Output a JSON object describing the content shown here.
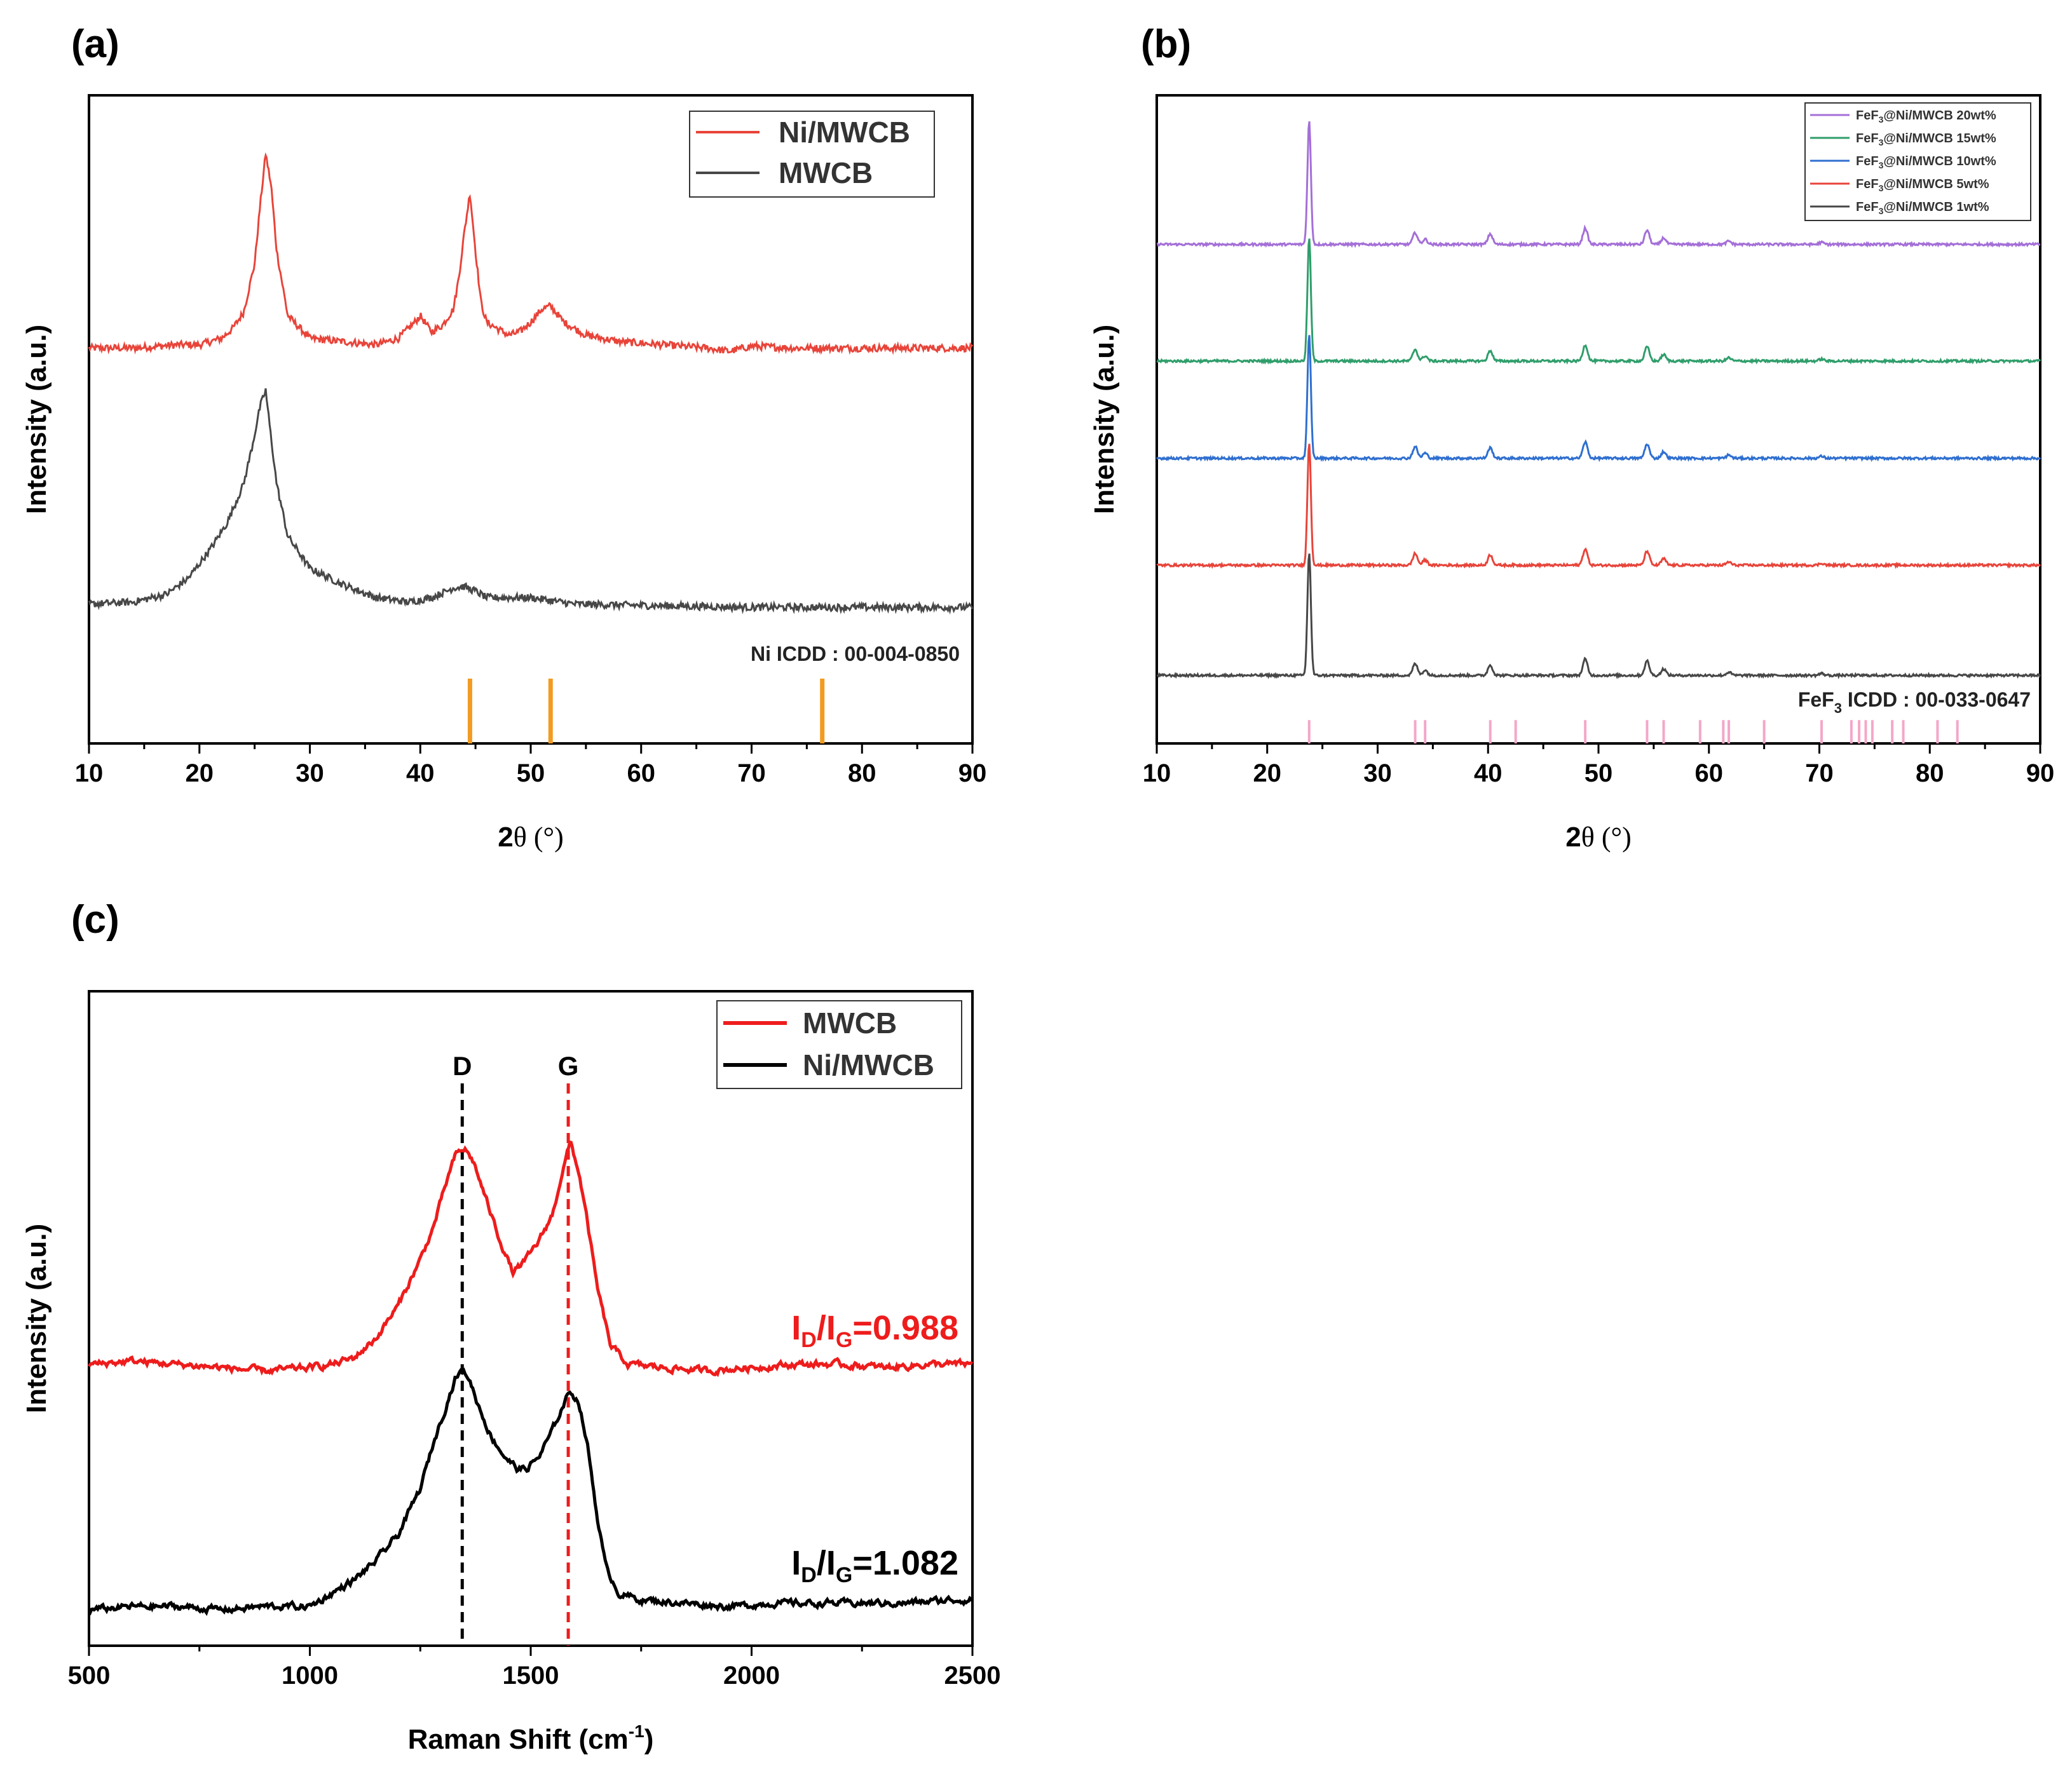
{
  "chart_data": [
    {
      "id": "a",
      "type": "line",
      "panel_label": "(a)",
      "xlabel": "2θ (°)",
      "xlabel_main": "2",
      "xlabel_sym": "θ (°)",
      "ylabel": "Intensity (a.u.)",
      "xlim": [
        10,
        90
      ],
      "ylim": [
        0,
        100
      ],
      "xticks": [
        "10",
        "20",
        "30",
        "40",
        "50",
        "60",
        "70",
        "80",
        "90"
      ],
      "series": [
        {
          "name": "Ni/MWCB",
          "color": "#e8443a",
          "x": [
            10,
            14,
            18,
            20,
            22,
            23,
            24,
            25,
            25.5,
            26,
            26.5,
            27,
            28,
            30,
            33,
            36,
            38,
            39.5,
            40,
            41,
            42,
            43,
            43.5,
            44,
            44.5,
            45,
            45.5,
            46,
            47,
            48,
            49,
            50,
            51,
            51.8,
            53,
            55,
            58,
            62,
            66,
            68,
            70,
            74,
            80,
            85,
            90
          ],
          "y": [
            61,
            61,
            61.5,
            61.5,
            62.5,
            64,
            66.5,
            74,
            83,
            91,
            86,
            76,
            66,
            62.5,
            62,
            61.5,
            62.5,
            65,
            66,
            63.5,
            64.5,
            67,
            72,
            79,
            85,
            76,
            68,
            65,
            64,
            63,
            63.5,
            65,
            67,
            67.5,
            65,
            63,
            62,
            61.5,
            61,
            60.5,
            61.3,
            61,
            61,
            61,
            61
          ]
        },
        {
          "name": "MWCB",
          "color": "#474747",
          "x": [
            10,
            14,
            17,
            19,
            21,
            22.5,
            24,
            24.8,
            25.5,
            26,
            26.5,
            27,
            28,
            30,
            33,
            36,
            39,
            41,
            42,
            43,
            44,
            45,
            46,
            48,
            50,
            54,
            60,
            70,
            80,
            90
          ],
          "y": [
            21.5,
            21.8,
            23,
            25.5,
            30,
            34,
            40,
            46,
            52,
            54.5,
            47,
            40,
            32,
            27,
            24.5,
            22.5,
            21.8,
            22.5,
            23.2,
            24,
            24.2,
            23.5,
            22.5,
            22.5,
            22.5,
            21.5,
            21.3,
            21,
            21,
            21
          ]
        }
      ],
      "legend": [
        "Ni/MWCB",
        "MWCB"
      ],
      "legend_loc": "top-right",
      "reference": {
        "label": "Ni ICDD : 00-004-0850",
        "color": "#f29b21",
        "positions": [
          44.5,
          51.8,
          76.4
        ],
        "heights": [
          10,
          10,
          10
        ]
      }
    },
    {
      "id": "b",
      "type": "line",
      "panel_label": "(b)",
      "xlabel": "2θ (°)",
      "xlabel_main": "2",
      "xlabel_sym": "θ (°)",
      "ylabel": "Intensity (a.u.)",
      "xlim": [
        10,
        90
      ],
      "ylim": [
        0,
        100
      ],
      "xticks": [
        "10",
        "20",
        "30",
        "40",
        "50",
        "60",
        "70",
        "80",
        "90"
      ],
      "series": [
        {
          "name": "FeF₃@Ni/MWCB 20wt%",
          "color": "#a46fd8",
          "baseline": 77
        },
        {
          "name": "FeF₃@Ni/MWCB 15wt%",
          "color": "#2f9e6b",
          "baseline": 59
        },
        {
          "name": "FeF₃@Ni/MWCB 10wt%",
          "color": "#2f6fd0",
          "baseline": 44
        },
        {
          "name": "FeF₃@Ni/MWCB 5wt%",
          "color": "#e8443a",
          "baseline": 27.5
        },
        {
          "name": "FeF₃@Ni/MWCB 1wt%",
          "color": "#474747",
          "baseline": 10.5
        }
      ],
      "peaks": [
        {
          "x": 23.8,
          "h": 19
        },
        {
          "x": 33.4,
          "h": 1.8
        },
        {
          "x": 34.3,
          "h": 0.8
        },
        {
          "x": 40.2,
          "h": 1.6
        },
        {
          "x": 48.8,
          "h": 2.5
        },
        {
          "x": 54.4,
          "h": 2.2
        },
        {
          "x": 55.9,
          "h": 1.0
        },
        {
          "x": 61.8,
          "h": 0.5
        },
        {
          "x": 70.2,
          "h": 0.3
        }
      ],
      "legend_loc": "top-right",
      "reference": {
        "label": "FeF₃ ICDD : 00-033-0647",
        "label_main": "FeF",
        "label_sub": "3",
        "label_rest": " ICDD : 00-033-0647",
        "color": "#f4a7c8",
        "positions": [
          23.8,
          33.4,
          34.3,
          40.2,
          42.5,
          48.8,
          54.4,
          55.9,
          59.2,
          61.3,
          61.8,
          65,
          70.2,
          72.9,
          73.6,
          74.2,
          74.8,
          76.6,
          77.6,
          80.7,
          82.5
        ]
      }
    },
    {
      "id": "c",
      "type": "line",
      "panel_label": "(c)",
      "xlabel": "Raman Shift (cm⁻¹)",
      "xlabel_main": "Raman Shift (cm",
      "xlabel_sup": "-1",
      "xlabel_end": ")",
      "ylabel": "Intensity (a.u.)",
      "xlim": [
        500,
        2500
      ],
      "ylim": [
        0,
        100
      ],
      "xticks": [
        "500",
        "1000",
        "1500",
        "2000",
        "2500"
      ],
      "series": [
        {
          "name": "MWCB",
          "color": "#ee1c1c",
          "x": [
            500,
            600,
            700,
            800,
            900,
            1000,
            1050,
            1100,
            1150,
            1200,
            1250,
            1280,
            1310,
            1330,
            1350,
            1370,
            1400,
            1430,
            1460,
            1490,
            1520,
            1550,
            1570,
            1590,
            1610,
            1630,
            1650,
            1680,
            1720,
            1800,
            1900,
            2000,
            2100,
            2200,
            2300,
            2400,
            2500
          ],
          "y": [
            43,
            43.5,
            43,
            42.5,
            42,
            42.5,
            43,
            44,
            47,
            52,
            59,
            64,
            71,
            75,
            76,
            74,
            68,
            62,
            57,
            59,
            62,
            66,
            72,
            77,
            72,
            64,
            55,
            46,
            43,
            42.5,
            42,
            42.5,
            43,
            43,
            42.5,
            43,
            43
          ]
        },
        {
          "name": "Ni/MWCB",
          "color": "#000000",
          "x": [
            500,
            600,
            700,
            800,
            900,
            1000,
            1050,
            1100,
            1150,
            1200,
            1250,
            1280,
            1310,
            1330,
            1345,
            1360,
            1380,
            1410,
            1440,
            1470,
            1490,
            1520,
            1550,
            1575,
            1590,
            1610,
            1630,
            1650,
            1670,
            1700,
            1750,
            1850,
            1950,
            2050,
            2150,
            2250,
            2350,
            2450,
            2500
          ],
          "y": [
            5.5,
            6,
            6,
            5.5,
            6,
            6,
            8,
            10,
            13,
            17,
            24,
            31,
            37,
            41,
            42,
            41,
            37,
            32,
            29,
            27,
            27,
            29,
            33,
            37,
            39,
            37,
            30,
            20,
            12,
            8,
            7,
            6.5,
            6,
            6.5,
            6.5,
            6.5,
            6.5,
            7,
            7
          ]
        }
      ],
      "legend": [
        "MWCB",
        "Ni/MWCB"
      ],
      "legend_loc": "top-right",
      "markers": [
        {
          "label": "D",
          "x": 1345,
          "color": "#000000"
        },
        {
          "label": "G",
          "x": 1585,
          "color": "#ee1c1c"
        }
      ],
      "ratios": [
        {
          "text": "ID/IG=0.988",
          "main": "I",
          "sub1": "D",
          "mid": "/I",
          "sub2": "G",
          "val": "=0.988",
          "color": "#ee1c1c"
        },
        {
          "text": "ID/IG=1.082",
          "main": "I",
          "sub1": "D",
          "mid": "/I",
          "sub2": "G",
          "val": "=1.082",
          "color": "#000000"
        }
      ]
    }
  ]
}
